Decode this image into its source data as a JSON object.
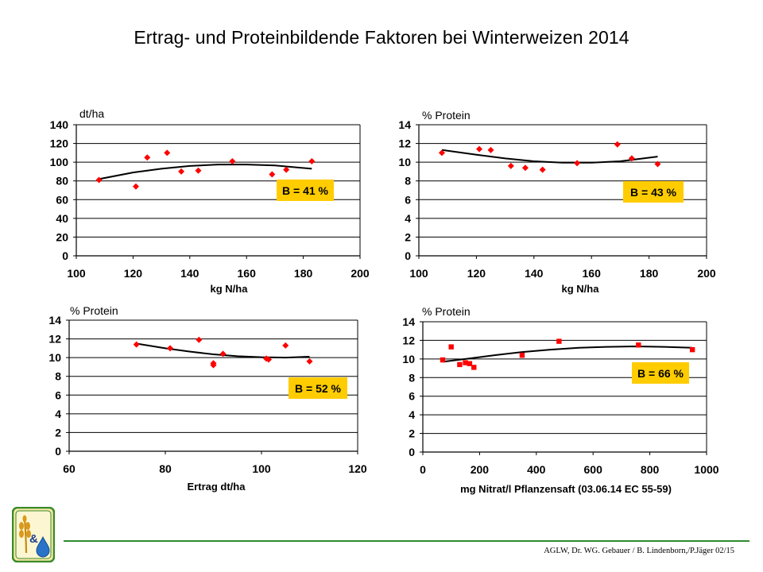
{
  "slide": {
    "title": "Ertrag- und Proteinbildende Faktoren bei Winterweizen 2014",
    "credit": "AGLW, Dr. WG. Gebauer / B. Lindenborn,/P.Jäger 02/15"
  },
  "colors": {
    "marker": "#ff0000",
    "trend": "#000000",
    "rsq_box": "#ffcc00",
    "footer_line": "#2e8b2e"
  },
  "logo": {
    "symbol": "&",
    "icons": [
      "wheat-icon",
      "water-drop-icon"
    ]
  },
  "chart_data": [
    {
      "type": "scatter",
      "marker": "diamond",
      "unit_label": "dt/ha",
      "xlabel": "kg N/ha",
      "xlim": [
        100,
        200
      ],
      "x_ticks": [
        100,
        120,
        140,
        160,
        180,
        200
      ],
      "ylim": [
        0,
        140
      ],
      "y_ticks": [
        0,
        20,
        40,
        60,
        80,
        100,
        120,
        140
      ],
      "grid": true,
      "rsq_label": "B = 41 %",
      "points": [
        [
          108,
          81
        ],
        [
          121,
          74
        ],
        [
          125,
          105
        ],
        [
          132,
          110
        ],
        [
          137,
          90
        ],
        [
          143,
          91
        ],
        [
          155,
          101
        ],
        [
          169,
          87
        ],
        [
          174,
          92
        ],
        [
          183,
          101
        ]
      ],
      "trend": [
        [
          108,
          82
        ],
        [
          120,
          89
        ],
        [
          130,
          93
        ],
        [
          140,
          96
        ],
        [
          150,
          97.5
        ],
        [
          160,
          97.5
        ],
        [
          170,
          96.5
        ],
        [
          183,
          93
        ]
      ]
    },
    {
      "type": "scatter",
      "marker": "diamond",
      "unit_label": "% Protein",
      "xlabel": "kg N/ha",
      "xlim": [
        100,
        200
      ],
      "x_ticks": [
        100,
        120,
        140,
        160,
        180,
        200
      ],
      "ylim": [
        0,
        14
      ],
      "y_ticks": [
        0,
        2,
        4,
        6,
        8,
        10,
        12,
        14
      ],
      "grid": true,
      "rsq_label": "B = 43 %",
      "points": [
        [
          108,
          11
        ],
        [
          121,
          11.4
        ],
        [
          125,
          11.3
        ],
        [
          132,
          9.6
        ],
        [
          137,
          9.4
        ],
        [
          143,
          9.2
        ],
        [
          155,
          9.9
        ],
        [
          169,
          11.9
        ],
        [
          174,
          10.4
        ],
        [
          183,
          9.8
        ]
      ],
      "trend": [
        [
          108,
          11.3
        ],
        [
          120,
          10.8
        ],
        [
          130,
          10.4
        ],
        [
          140,
          10.1
        ],
        [
          150,
          9.95
        ],
        [
          160,
          9.95
        ],
        [
          170,
          10.1
        ],
        [
          183,
          10.6
        ]
      ]
    },
    {
      "type": "scatter",
      "marker": "diamond",
      "unit_label": "% Protein",
      "xlabel": "Ertrag dt/ha",
      "xlim": [
        60,
        120
      ],
      "x_ticks": [
        60,
        80,
        100,
        120
      ],
      "ylim": [
        0,
        14
      ],
      "y_ticks": [
        0,
        2,
        4,
        6,
        8,
        10,
        12,
        14
      ],
      "grid": true,
      "rsq_label": "B = 52 %",
      "points": [
        [
          74,
          11.4
        ],
        [
          81,
          11
        ],
        [
          87,
          11.9
        ],
        [
          90,
          9.2
        ],
        [
          90,
          9.4
        ],
        [
          92,
          10.4
        ],
        [
          101,
          9.9
        ],
        [
          101.5,
          9.8
        ],
        [
          105,
          11.3
        ],
        [
          110,
          9.6
        ]
      ],
      "trend": [
        [
          74,
          11.5
        ],
        [
          80,
          11
        ],
        [
          85,
          10.65
        ],
        [
          90,
          10.35
        ],
        [
          95,
          10.15
        ],
        [
          100,
          10.05
        ],
        [
          105,
          10.0
        ],
        [
          110,
          10.1
        ]
      ]
    },
    {
      "type": "scatter",
      "marker": "square",
      "unit_label": "% Protein",
      "xlabel": "mg Nitrat/l Pflanzensaft",
      "xlabel_suffix": "(03.06.14 EC 55-59)",
      "xlim": [
        0,
        1000
      ],
      "x_ticks": [
        0,
        200,
        400,
        600,
        800,
        1000
      ],
      "ylim": [
        0,
        14
      ],
      "y_ticks": [
        0,
        2,
        4,
        6,
        8,
        10,
        12,
        14
      ],
      "grid": true,
      "rsq_label": "B = 66 %",
      "points": [
        [
          70,
          9.9
        ],
        [
          100,
          11.3
        ],
        [
          130,
          9.4
        ],
        [
          150,
          9.6
        ],
        [
          165,
          9.5
        ],
        [
          180,
          9.1
        ],
        [
          350,
          10.4
        ],
        [
          480,
          11.9
        ],
        [
          760,
          11.5
        ],
        [
          950,
          11.0
        ]
      ],
      "trend": [
        [
          70,
          9.7
        ],
        [
          150,
          10.0
        ],
        [
          250,
          10.4
        ],
        [
          350,
          10.75
        ],
        [
          450,
          11.0
        ],
        [
          550,
          11.2
        ],
        [
          650,
          11.3
        ],
        [
          750,
          11.35
        ],
        [
          850,
          11.3
        ],
        [
          950,
          11.2
        ]
      ]
    }
  ]
}
